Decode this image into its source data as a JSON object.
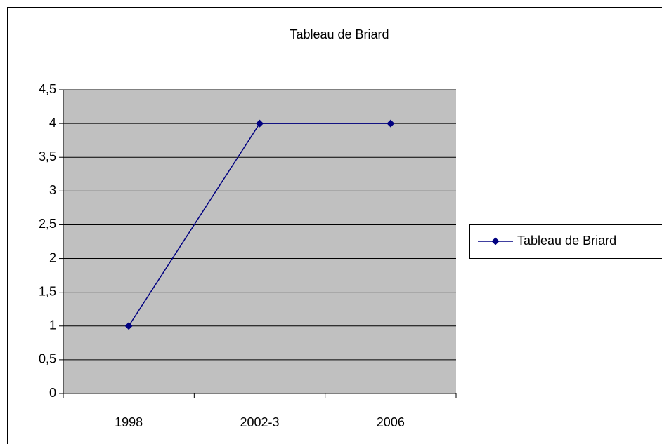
{
  "chart_data": {
    "type": "line",
    "title": "Tableau de Briard",
    "categories": [
      "1998",
      "2002-3",
      "2006"
    ],
    "series": [
      {
        "name": "Tableau de Briard",
        "color": "#000080",
        "values": [
          1,
          4,
          4
        ]
      }
    ],
    "ylim": [
      0,
      4.5
    ],
    "yticks": [
      0,
      {
        "value": 0.5,
        "label": "0,5"
      },
      1,
      {
        "value": 1.5,
        "label": "1,5"
      },
      2,
      {
        "value": 2.5,
        "label": "2,5"
      },
      3,
      {
        "value": 3.5,
        "label": "3,5"
      },
      4,
      {
        "value": 4.5,
        "label": "4,5"
      }
    ],
    "grid": true,
    "plot_background": "#c0c0c0",
    "legend": "right"
  }
}
